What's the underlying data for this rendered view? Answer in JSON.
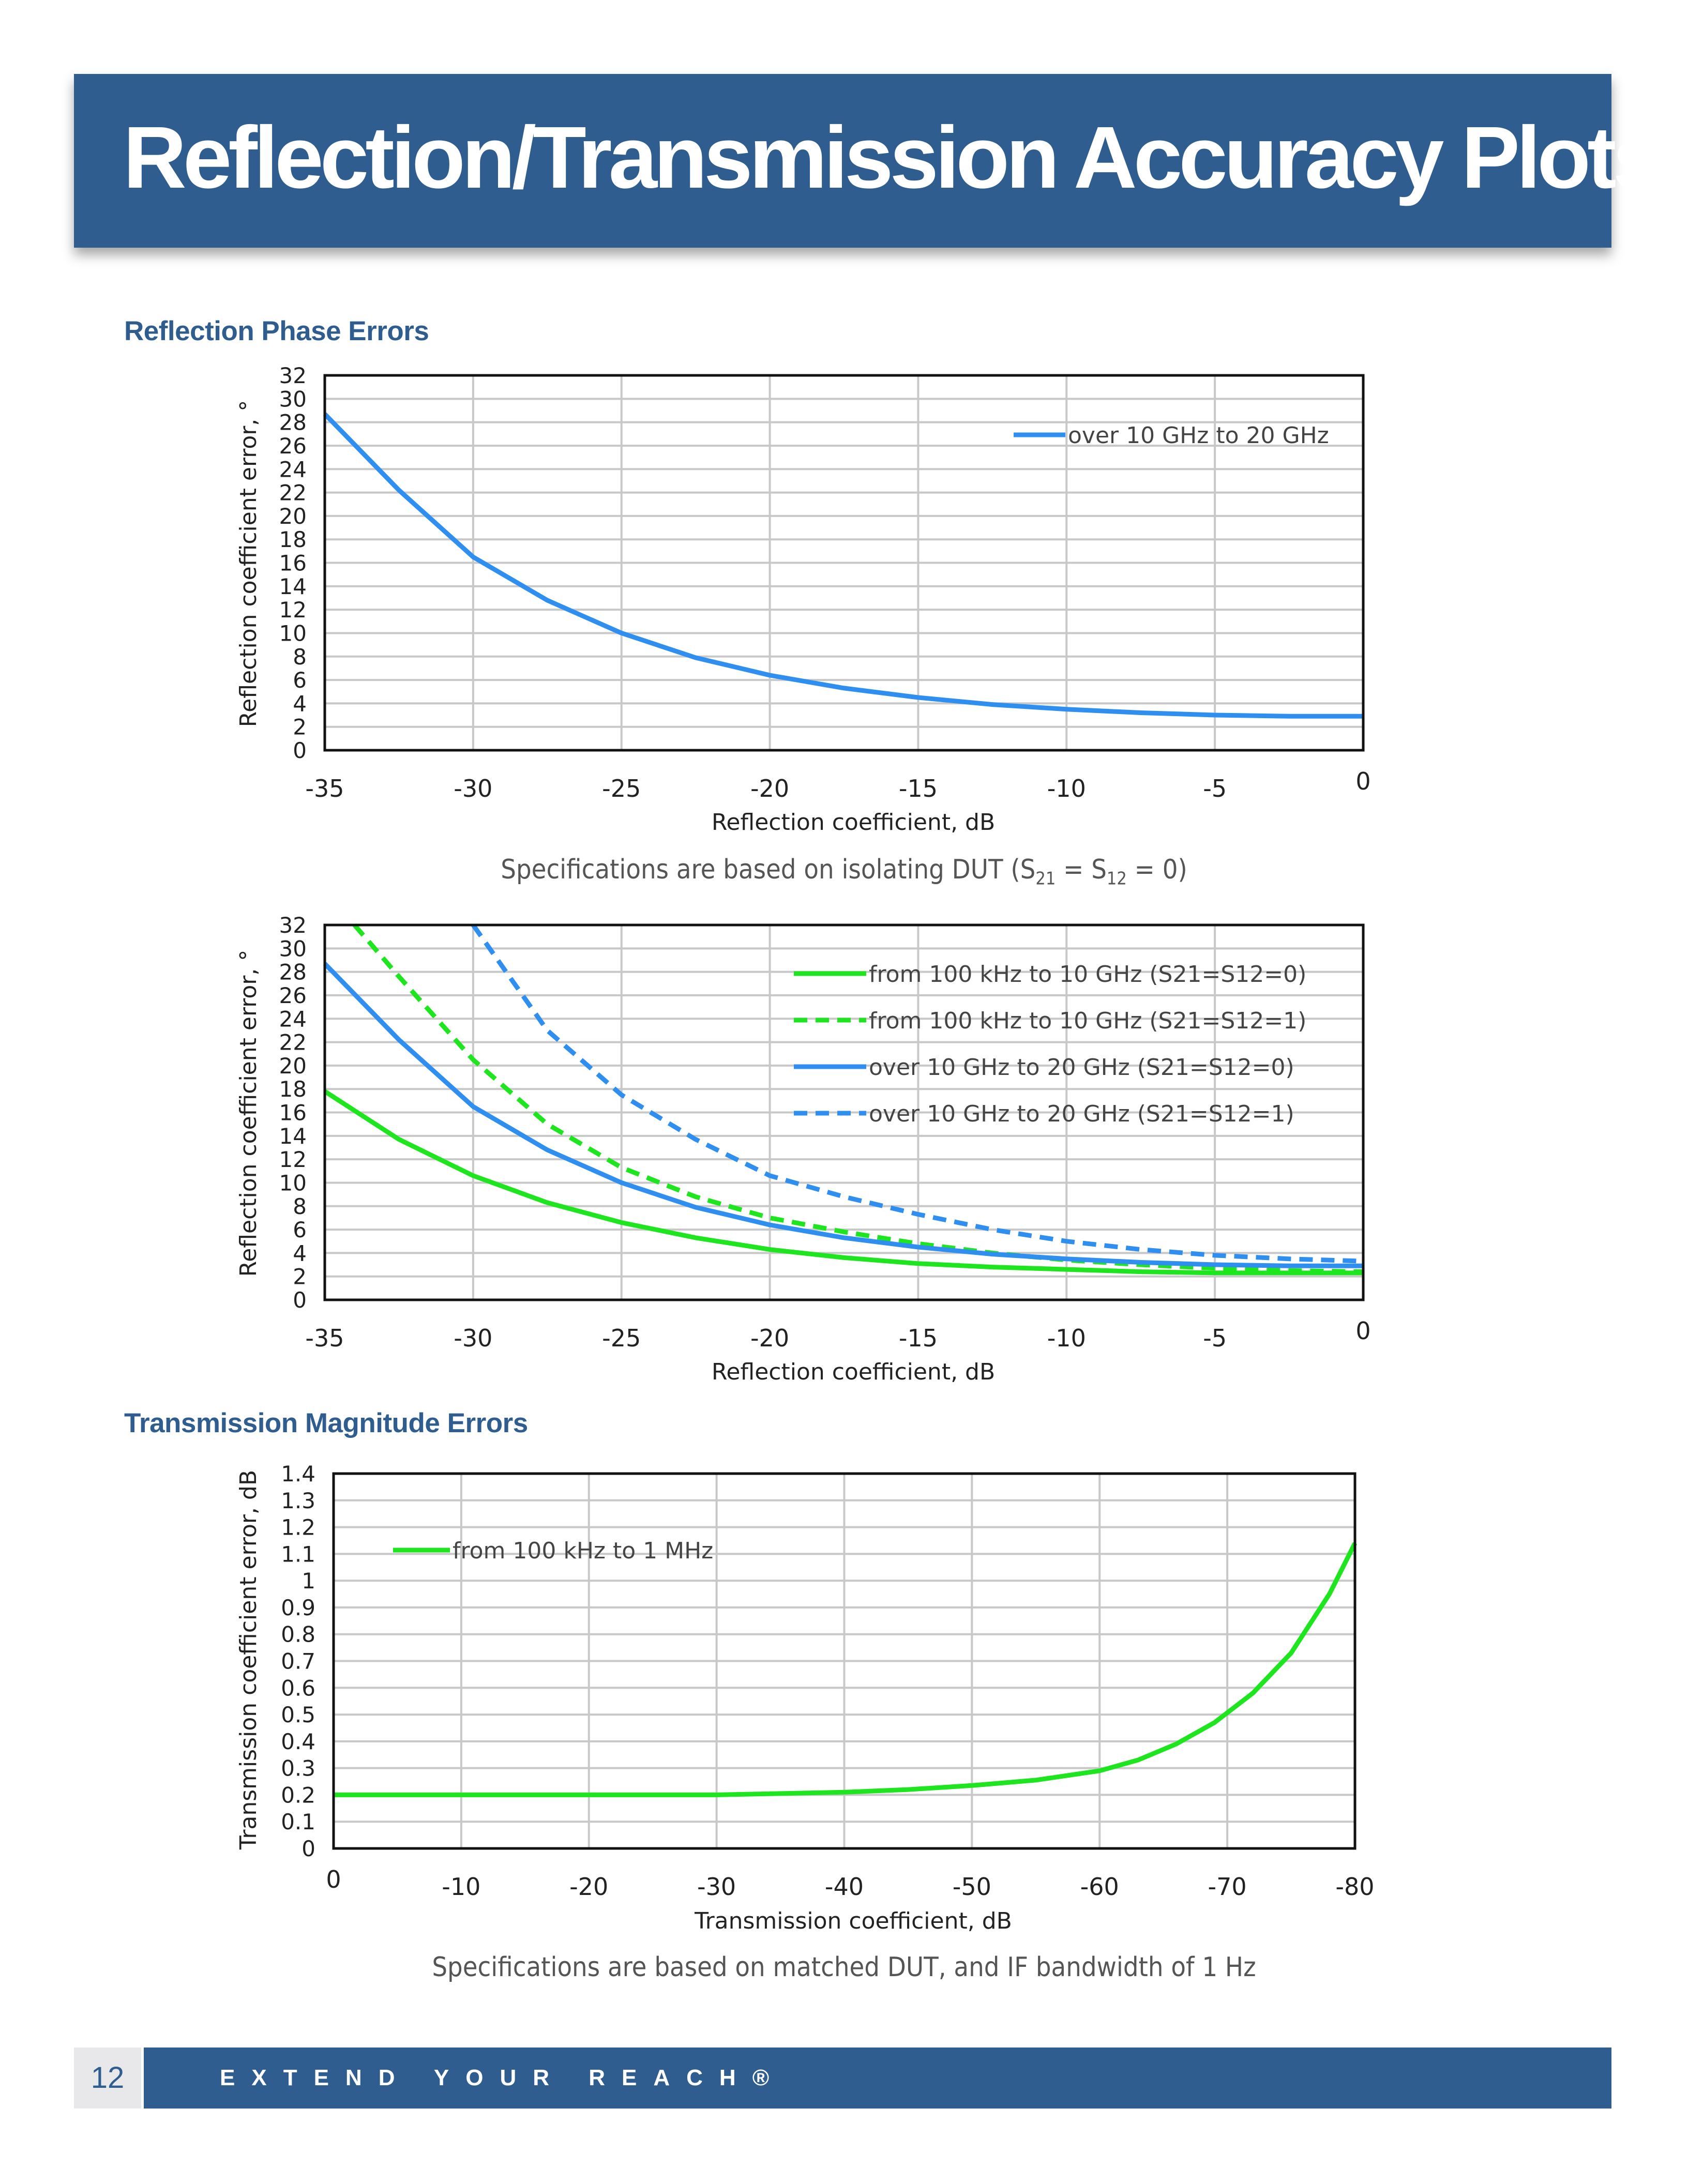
{
  "page": {
    "title": "Reflection/Transmission Accuracy Plots",
    "section1": "Reflection Phase Errors",
    "note1": "Specifications are based on isolating DUT",
    "section2": "Transmission Magnitude Errors",
    "note2": "Specifications are based on matched DUT, and IF bandwidth of 1 Hz",
    "page_number": "12",
    "tagline": "EXTEND YOUR REACH®"
  },
  "colors": {
    "banner": "#2f5d8f",
    "blue": "#2e8ff0",
    "green": "#1ee61e"
  },
  "chart_data": [
    {
      "type": "line",
      "xlabel": "Reflection coefficient, dB",
      "ylabel": "Reflection coefficient error, °",
      "xlim": [
        -35,
        0
      ],
      "ylim": [
        0,
        32
      ],
      "xticks": [
        -35,
        -30,
        -25,
        -20,
        -15,
        -10,
        -5,
        0
      ],
      "yticks": [
        0,
        2,
        4,
        6,
        8,
        10,
        12,
        14,
        16,
        18,
        20,
        22,
        24,
        26,
        28,
        30,
        32
      ],
      "grid": true,
      "legend": "top-right",
      "series": [
        {
          "name": "over 10 GHz to 20 GHz",
          "color": "#2e8ff0",
          "dash": false,
          "x": [
            -35,
            -32.5,
            -30,
            -27.5,
            -25,
            -22.5,
            -20,
            -17.5,
            -15,
            -12.5,
            -10,
            -7.5,
            -5,
            -2.5,
            0
          ],
          "y": [
            28.7,
            22.2,
            16.5,
            12.8,
            10,
            7.9,
            6.4,
            5.3,
            4.5,
            3.9,
            3.5,
            3.2,
            3.0,
            2.9,
            2.9
          ]
        }
      ]
    },
    {
      "type": "line",
      "xlabel": "Reflection coefficient, dB",
      "ylabel": "Reflection coefficient error, °",
      "xlim": [
        -35,
        0
      ],
      "ylim": [
        0,
        32
      ],
      "xticks": [
        -35,
        -30,
        -25,
        -20,
        -15,
        -10,
        -5,
        0
      ],
      "yticks": [
        0,
        2,
        4,
        6,
        8,
        10,
        12,
        14,
        16,
        18,
        20,
        22,
        24,
        26,
        28,
        30,
        32
      ],
      "grid": true,
      "legend": "top-right",
      "series": [
        {
          "name": "from 100 kHz to 10 GHz (S21=S12=0)",
          "color": "#1ee61e",
          "dash": false,
          "x": [
            -35,
            -32.5,
            -30,
            -27.5,
            -25,
            -22.5,
            -20,
            -17.5,
            -15,
            -12.5,
            -10,
            -7.5,
            -5,
            -2.5,
            0
          ],
          "y": [
            17.8,
            13.7,
            10.6,
            8.3,
            6.6,
            5.3,
            4.3,
            3.6,
            3.1,
            2.8,
            2.6,
            2.4,
            2.3,
            2.3,
            2.3
          ]
        },
        {
          "name": "from 100 kHz to 10 GHz (S21=S12=1)",
          "color": "#1ee61e",
          "dash": true,
          "x": [
            -34,
            -32.5,
            -30,
            -27.5,
            -25,
            -22.5,
            -20,
            -17.5,
            -15,
            -12.5,
            -10,
            -7.5,
            -5,
            -2.5,
            0
          ],
          "y": [
            32,
            27.6,
            20.5,
            15.0,
            11.3,
            8.8,
            7.0,
            5.8,
            4.8,
            4.0,
            3.4,
            3.0,
            2.7,
            2.5,
            2.4
          ]
        },
        {
          "name": "over 10 GHz to 20 GHz (S21=S12=0)",
          "color": "#2e8ff0",
          "dash": false,
          "x": [
            -35,
            -32.5,
            -30,
            -27.5,
            -25,
            -22.5,
            -20,
            -17.5,
            -15,
            -12.5,
            -10,
            -7.5,
            -5,
            -2.5,
            0
          ],
          "y": [
            28.7,
            22.2,
            16.5,
            12.8,
            10,
            7.9,
            6.4,
            5.3,
            4.5,
            3.9,
            3.5,
            3.2,
            3.0,
            2.9,
            2.9
          ]
        },
        {
          "name": "over 10 GHz to 20 GHz (S21=S12=1)",
          "color": "#2e8ff0",
          "dash": true,
          "x": [
            -30,
            -27.5,
            -25,
            -22.5,
            -20,
            -17.5,
            -15,
            -12.5,
            -10,
            -7.5,
            -5,
            -2.5,
            0
          ],
          "y": [
            32,
            23.0,
            17.5,
            13.7,
            10.6,
            8.8,
            7.3,
            6.0,
            5.0,
            4.3,
            3.8,
            3.5,
            3.3
          ]
        }
      ]
    },
    {
      "type": "line",
      "xlabel": "Transmission coefficient, dB",
      "ylabel": "Transmission coefficient error, dB",
      "xlim": [
        0,
        -80
      ],
      "ylim": [
        0,
        1.4
      ],
      "xticks": [
        0,
        -10,
        -20,
        -30,
        -40,
        -50,
        -60,
        -70,
        -80
      ],
      "yticks": [
        0,
        0.1,
        0.2,
        0.3,
        0.4,
        0.5,
        0.6,
        0.7,
        0.8,
        0.9,
        1,
        1.1,
        1.2,
        1.3,
        1.4
      ],
      "grid": true,
      "legend": "top-left",
      "series": [
        {
          "name": "from 100 kHz to 1 MHz",
          "color": "#1ee61e",
          "dash": false,
          "x": [
            0,
            -10,
            -20,
            -30,
            -40,
            -45,
            -50,
            -55,
            -60,
            -63,
            -66,
            -69,
            -72,
            -75,
            -78,
            -80
          ],
          "y": [
            0.2,
            0.2,
            0.2,
            0.2,
            0.21,
            0.22,
            0.235,
            0.255,
            0.29,
            0.33,
            0.39,
            0.47,
            0.58,
            0.73,
            0.95,
            1.14
          ]
        }
      ]
    }
  ]
}
